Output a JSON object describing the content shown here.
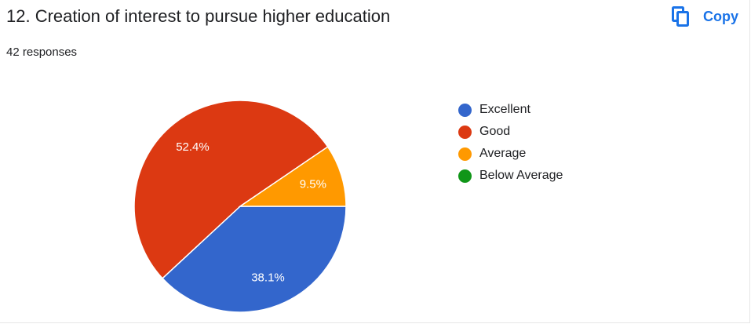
{
  "question": {
    "title": "12. Creation of interest to pursue higher education",
    "responses": "42 responses",
    "copy_label": "Copy",
    "copy_icon": "copy-icon"
  },
  "colors": {
    "accent": "#1a73e8",
    "slice_border": "#ffffff"
  },
  "chart_data": {
    "type": "pie",
    "categories": [
      "Excellent",
      "Good",
      "Average",
      "Below Average"
    ],
    "values": [
      38.1,
      52.4,
      9.5,
      0
    ],
    "labels": [
      "38.1%",
      "52.4%",
      "9.5%",
      ""
    ],
    "colors": [
      "#3366cc",
      "#dc3912",
      "#ff9900",
      "#109618"
    ],
    "legend_position": "right"
  }
}
